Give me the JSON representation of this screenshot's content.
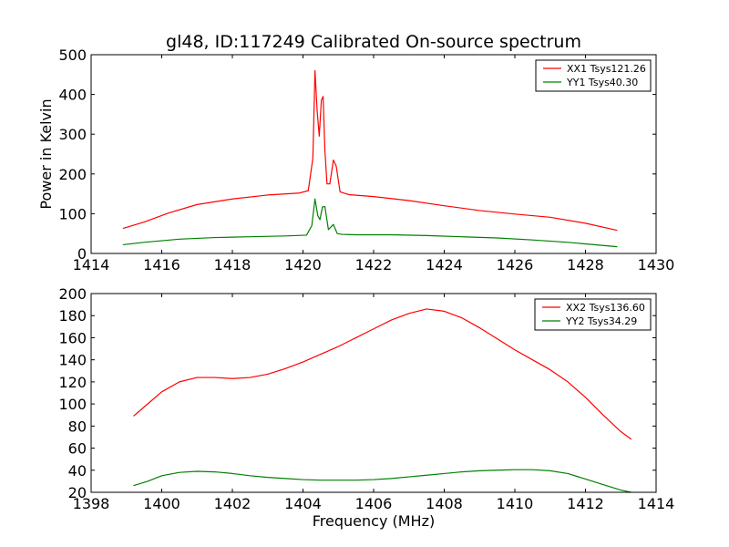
{
  "title": "gl48, ID:117249 Calibrated On-source spectrum",
  "chart_data": [
    {
      "type": "line",
      "ylabel": "Power in Kelvin",
      "xlabel": "",
      "xlim": [
        1414,
        1430
      ],
      "ylim": [
        0,
        500
      ],
      "xticks": [
        1414,
        1416,
        1418,
        1420,
        1422,
        1424,
        1426,
        1428,
        1430
      ],
      "yticks": [
        0,
        100,
        200,
        300,
        400,
        500
      ],
      "grid": false,
      "legend_position": "top-right",
      "series": [
        {
          "name": "XX1 Tsys121.26",
          "color": "#ff0000",
          "x": [
            1414.9,
            1415.5,
            1416.2,
            1417.0,
            1418.0,
            1419.0,
            1419.9,
            1420.15,
            1420.28,
            1420.34,
            1420.4,
            1420.46,
            1420.52,
            1420.57,
            1420.62,
            1420.68,
            1420.76,
            1420.86,
            1420.94,
            1421.05,
            1421.3,
            1422.0,
            1423.0,
            1424.0,
            1425.0,
            1426.0,
            1427.0,
            1428.0,
            1428.9
          ],
          "y": [
            63,
            79,
            102,
            123,
            137,
            147,
            152,
            158,
            240,
            460,
            360,
            295,
            385,
            395,
            260,
            175,
            175,
            235,
            220,
            155,
            148,
            143,
            133,
            120,
            108,
            99,
            91,
            76,
            58
          ]
        },
        {
          "name": "YY1 Tsys40.30",
          "color": "#008000",
          "x": [
            1414.9,
            1415.5,
            1416.5,
            1417.5,
            1418.5,
            1419.5,
            1420.1,
            1420.25,
            1420.34,
            1420.42,
            1420.48,
            1420.55,
            1420.62,
            1420.72,
            1420.86,
            1420.97,
            1421.1,
            1421.5,
            1422.5,
            1423.5,
            1424.5,
            1425.5,
            1426.5,
            1427.5,
            1428.9
          ],
          "y": [
            22,
            28,
            36,
            40,
            42,
            44,
            46,
            70,
            137,
            95,
            85,
            117,
            118,
            60,
            73,
            50,
            48,
            47,
            47,
            45,
            42,
            39,
            34,
            28,
            17
          ]
        }
      ]
    },
    {
      "type": "line",
      "ylabel": "",
      "xlabel": "Frequency (MHz)",
      "xlim": [
        1398,
        1414
      ],
      "ylim": [
        20,
        200
      ],
      "xticks": [
        1398,
        1400,
        1402,
        1404,
        1406,
        1408,
        1410,
        1412,
        1414
      ],
      "yticks": [
        20,
        40,
        60,
        80,
        100,
        120,
        140,
        160,
        180,
        200
      ],
      "grid": false,
      "legend_position": "top-right",
      "series": [
        {
          "name": "XX2 Tsys136.60",
          "color": "#ff0000",
          "x": [
            1399.2,
            1399.6,
            1400.0,
            1400.5,
            1401.0,
            1401.5,
            1402.0,
            1402.5,
            1403.0,
            1403.5,
            1404.0,
            1404.5,
            1405.0,
            1405.5,
            1406.0,
            1406.5,
            1407.0,
            1407.5,
            1408.0,
            1408.5,
            1409.0,
            1409.5,
            1410.0,
            1410.5,
            1411.0,
            1411.5,
            1412.0,
            1412.5,
            1413.0,
            1413.3
          ],
          "y": [
            89,
            100,
            111,
            120,
            124,
            124,
            123,
            124,
            127,
            132,
            138,
            145,
            152,
            160,
            168,
            176,
            182,
            186,
            184,
            178,
            169,
            159,
            149,
            140,
            131,
            120,
            106,
            90,
            75,
            68
          ]
        },
        {
          "name": "YY2 Tsys34.29",
          "color": "#008000",
          "x": [
            1399.2,
            1399.6,
            1400.0,
            1400.5,
            1401.0,
            1401.5,
            1402.0,
            1402.5,
            1403.0,
            1403.5,
            1404.0,
            1404.5,
            1405.0,
            1405.5,
            1406.0,
            1406.5,
            1407.0,
            1407.5,
            1408.0,
            1408.5,
            1409.0,
            1409.5,
            1410.0,
            1410.5,
            1411.0,
            1411.5,
            1412.0,
            1412.5,
            1413.0,
            1413.3
          ],
          "y": [
            26,
            30,
            35,
            38,
            39,
            38.5,
            37,
            35,
            33.5,
            32.5,
            31.5,
            31,
            31,
            31,
            31.5,
            32.5,
            34,
            35.5,
            37,
            38.5,
            39.5,
            40,
            40.5,
            40.5,
            39.5,
            37,
            32,
            27,
            22,
            20
          ]
        }
      ]
    }
  ]
}
